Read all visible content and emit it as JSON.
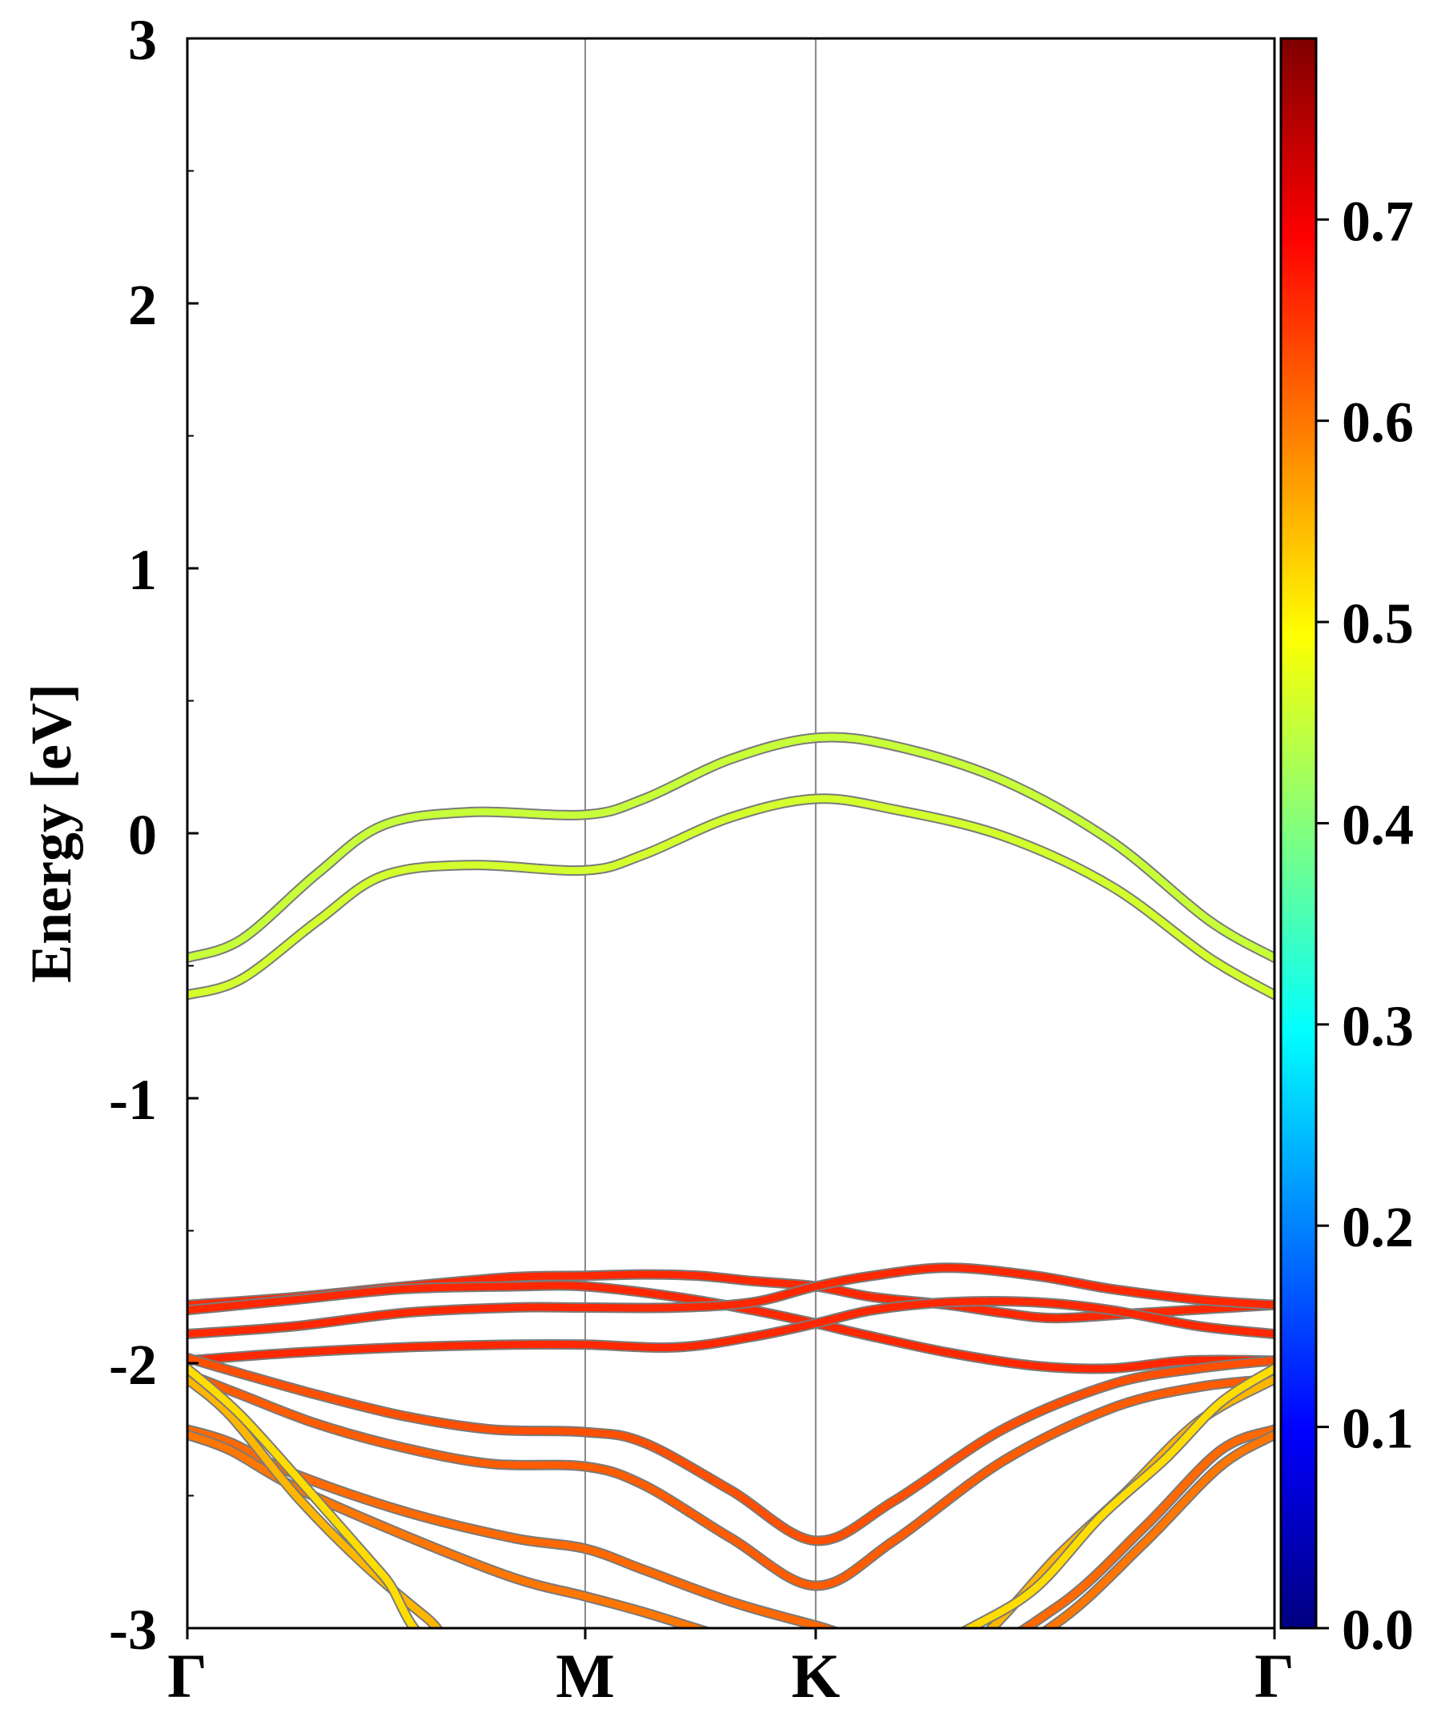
{
  "chart_data": {
    "type": "line",
    "ylabel": "Energy [eV]",
    "xlabel": "",
    "ylim": [
      -3,
      3
    ],
    "yticks": [
      {
        "value": 3,
        "label": "3"
      },
      {
        "value": 2,
        "label": "2"
      },
      {
        "value": 1,
        "label": "1"
      },
      {
        "value": 0,
        "label": "0"
      },
      {
        "value": -1,
        "label": "-1"
      },
      {
        "value": -2,
        "label": "-2"
      },
      {
        "value": -3,
        "label": "-3"
      }
    ],
    "yminor_ticks": [
      2.5,
      1.5,
      0.5,
      -0.5,
      -1.5,
      -2.5
    ],
    "kpath": [
      {
        "x": 0,
        "label": "Γ"
      },
      {
        "x": 0.366,
        "label": "M"
      },
      {
        "x": 0.578,
        "label": "K"
      },
      {
        "x": 1.0,
        "label": "Γ"
      }
    ],
    "grid": false,
    "colorbar": {
      "colormap": "jet",
      "range": [
        0.0,
        0.79
      ],
      "ticks": [
        {
          "value": 0.0,
          "label": "0.0"
        },
        {
          "value": 0.1,
          "label": "0.1"
        },
        {
          "value": 0.2,
          "label": "0.2"
        },
        {
          "value": 0.3,
          "label": "0.3"
        },
        {
          "value": 0.4,
          "label": "0.4"
        },
        {
          "value": 0.5,
          "label": "0.5"
        },
        {
          "value": 0.6,
          "label": "0.6"
        },
        {
          "value": 0.7,
          "label": "0.7"
        }
      ]
    },
    "bands": [
      {
        "name": "cb-upper",
        "weight": 0.45,
        "points": [
          [
            0,
            -0.47
          ],
          [
            0.05,
            -0.4
          ],
          [
            0.12,
            -0.15
          ],
          [
            0.18,
            0.03
          ],
          [
            0.26,
            0.08
          ],
          [
            0.366,
            0.07
          ],
          [
            0.42,
            0.13
          ],
          [
            0.5,
            0.28
          ],
          [
            0.578,
            0.36
          ],
          [
            0.65,
            0.33
          ],
          [
            0.75,
            0.2
          ],
          [
            0.85,
            -0.03
          ],
          [
            0.94,
            -0.33
          ],
          [
            1.0,
            -0.47
          ]
        ]
      },
      {
        "name": "cb-lower",
        "weight": 0.46,
        "points": [
          [
            0,
            -0.61
          ],
          [
            0.05,
            -0.55
          ],
          [
            0.12,
            -0.33
          ],
          [
            0.18,
            -0.16
          ],
          [
            0.26,
            -0.12
          ],
          [
            0.366,
            -0.14
          ],
          [
            0.42,
            -0.08
          ],
          [
            0.5,
            0.06
          ],
          [
            0.578,
            0.13
          ],
          [
            0.65,
            0.09
          ],
          [
            0.75,
            -0.01
          ],
          [
            0.85,
            -0.2
          ],
          [
            0.94,
            -0.47
          ],
          [
            1.0,
            -0.61
          ]
        ]
      },
      {
        "name": "vb-1",
        "weight": 0.66,
        "points": [
          [
            0,
            -1.78
          ],
          [
            0.1,
            -1.75
          ],
          [
            0.2,
            -1.71
          ],
          [
            0.3,
            -1.675
          ],
          [
            0.366,
            -1.67
          ],
          [
            0.42,
            -1.665
          ],
          [
            0.47,
            -1.67
          ],
          [
            0.52,
            -1.69
          ],
          [
            0.578,
            -1.71
          ],
          [
            0.63,
            -1.75
          ],
          [
            0.7,
            -1.78
          ],
          [
            0.75,
            -1.81
          ],
          [
            0.8,
            -1.83
          ],
          [
            0.88,
            -1.81
          ],
          [
            1.0,
            -1.78
          ]
        ]
      },
      {
        "name": "vb-2",
        "weight": 0.66,
        "points": [
          [
            0,
            -1.8
          ],
          [
            0.1,
            -1.76
          ],
          [
            0.2,
            -1.72
          ],
          [
            0.3,
            -1.71
          ],
          [
            0.366,
            -1.71
          ],
          [
            0.45,
            -1.75
          ],
          [
            0.52,
            -1.8
          ],
          [
            0.578,
            -1.85
          ],
          [
            0.62,
            -1.89
          ],
          [
            0.7,
            -1.96
          ],
          [
            0.78,
            -2.01
          ],
          [
            0.85,
            -2.02
          ],
          [
            0.92,
            -1.99
          ],
          [
            1.0,
            -1.99
          ]
        ]
      },
      {
        "name": "vb-3",
        "weight": 0.66,
        "points": [
          [
            0,
            -1.89
          ],
          [
            0.1,
            -1.86
          ],
          [
            0.2,
            -1.81
          ],
          [
            0.3,
            -1.79
          ],
          [
            0.366,
            -1.79
          ],
          [
            0.45,
            -1.79
          ],
          [
            0.52,
            -1.77
          ],
          [
            0.578,
            -1.71
          ],
          [
            0.63,
            -1.67
          ],
          [
            0.7,
            -1.64
          ],
          [
            0.78,
            -1.67
          ],
          [
            0.85,
            -1.72
          ],
          [
            0.93,
            -1.76
          ],
          [
            1.0,
            -1.78
          ]
        ]
      },
      {
        "name": "vb-4",
        "weight": 0.66,
        "points": [
          [
            0,
            -1.99
          ],
          [
            0.1,
            -1.96
          ],
          [
            0.2,
            -1.94
          ],
          [
            0.3,
            -1.93
          ],
          [
            0.366,
            -1.93
          ],
          [
            0.45,
            -1.94
          ],
          [
            0.52,
            -1.9
          ],
          [
            0.578,
            -1.85
          ],
          [
            0.63,
            -1.8
          ],
          [
            0.7,
            -1.77
          ],
          [
            0.78,
            -1.77
          ],
          [
            0.85,
            -1.8
          ],
          [
            0.93,
            -1.86
          ],
          [
            1.0,
            -1.89
          ]
        ]
      },
      {
        "name": "vb-5",
        "weight": 0.63,
        "points": [
          [
            0,
            -1.98
          ],
          [
            0.05,
            -2.04
          ],
          [
            0.12,
            -2.12
          ],
          [
            0.2,
            -2.2
          ],
          [
            0.28,
            -2.25
          ],
          [
            0.366,
            -2.26
          ],
          [
            0.42,
            -2.3
          ],
          [
            0.5,
            -2.48
          ],
          [
            0.578,
            -2.67
          ],
          [
            0.65,
            -2.52
          ],
          [
            0.75,
            -2.25
          ],
          [
            0.85,
            -2.08
          ],
          [
            0.93,
            -2.02
          ],
          [
            1.0,
            -1.99
          ]
        ]
      },
      {
        "name": "vb-6",
        "weight": 0.62,
        "points": [
          [
            0,
            -2.04
          ],
          [
            0.05,
            -2.12
          ],
          [
            0.12,
            -2.23
          ],
          [
            0.2,
            -2.32
          ],
          [
            0.28,
            -2.38
          ],
          [
            0.366,
            -2.39
          ],
          [
            0.42,
            -2.46
          ],
          [
            0.5,
            -2.66
          ],
          [
            0.578,
            -2.84
          ],
          [
            0.65,
            -2.67
          ],
          [
            0.75,
            -2.37
          ],
          [
            0.85,
            -2.17
          ],
          [
            0.93,
            -2.09
          ],
          [
            1.0,
            -2.06
          ]
        ]
      },
      {
        "name": "vb-7",
        "weight": 0.61,
        "points": [
          [
            0,
            -2.25
          ],
          [
            0.04,
            -2.3
          ],
          [
            0.1,
            -2.42
          ],
          [
            0.2,
            -2.56
          ],
          [
            0.3,
            -2.66
          ],
          [
            0.366,
            -2.7
          ],
          [
            0.42,
            -2.78
          ],
          [
            0.5,
            -2.9
          ],
          [
            0.578,
            -2.99
          ],
          [
            0.7,
            -3.12
          ],
          [
            0.8,
            -2.92
          ],
          [
            0.88,
            -2.62
          ],
          [
            0.95,
            -2.33
          ],
          [
            1.0,
            -2.25
          ]
        ]
      },
      {
        "name": "vb-8",
        "weight": 0.6,
        "points": [
          [
            0,
            -2.27
          ],
          [
            0.04,
            -2.33
          ],
          [
            0.1,
            -2.47
          ],
          [
            0.2,
            -2.65
          ],
          [
            0.3,
            -2.81
          ],
          [
            0.366,
            -2.88
          ],
          [
            0.42,
            -2.94
          ],
          [
            0.5,
            -3.04
          ],
          [
            0.578,
            -3.12
          ],
          [
            0.7,
            -3.2
          ],
          [
            0.8,
            -2.98
          ],
          [
            0.88,
            -2.68
          ],
          [
            0.95,
            -2.39
          ],
          [
            1.0,
            -2.27
          ]
        ]
      },
      {
        "name": "vb-9",
        "weight": 0.55,
        "points": [
          [
            0,
            -2.06
          ],
          [
            0.04,
            -2.2
          ],
          [
            0.1,
            -2.5
          ],
          [
            0.16,
            -2.75
          ],
          [
            0.22,
            -2.96
          ],
          [
            0.28,
            -3.15
          ],
          [
            0.5,
            -3.3
          ],
          [
            0.66,
            -3.3
          ],
          [
            0.74,
            -3.0
          ],
          [
            0.8,
            -2.73
          ],
          [
            0.86,
            -2.5
          ],
          [
            0.93,
            -2.22
          ],
          [
            1.0,
            -2.06
          ]
        ]
      },
      {
        "name": "vb-10",
        "weight": 0.52,
        "points": [
          [
            0,
            -2.02
          ],
          [
            0.05,
            -2.2
          ],
          [
            0.12,
            -2.52
          ],
          [
            0.18,
            -2.8
          ],
          [
            0.25,
            -3.12
          ],
          [
            0.5,
            -3.3
          ],
          [
            0.62,
            -3.2
          ],
          [
            0.66,
            -3.12
          ],
          [
            0.72,
            -3.0
          ],
          [
            0.78,
            -2.85
          ],
          [
            0.84,
            -2.58
          ],
          [
            0.9,
            -2.36
          ],
          [
            0.95,
            -2.15
          ],
          [
            1.0,
            -2.02
          ]
        ]
      }
    ]
  }
}
